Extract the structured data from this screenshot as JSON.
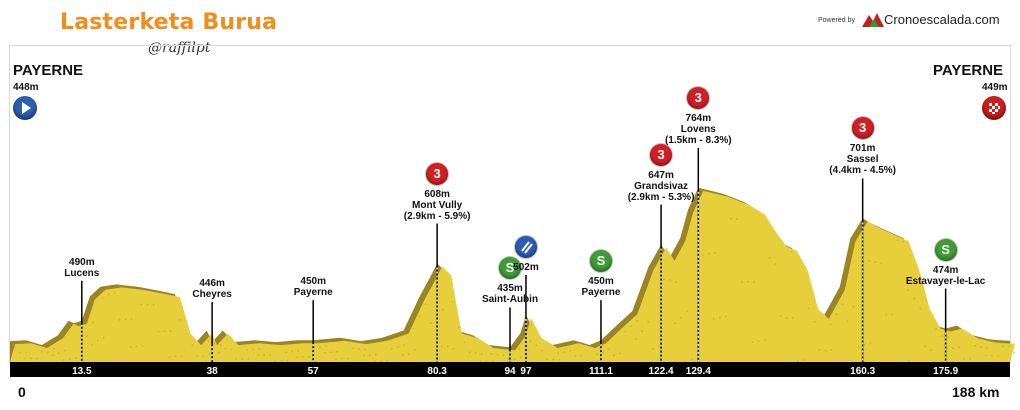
{
  "header": {
    "title": "Lasterketa Burua",
    "subtitle": "@raffilpt",
    "powered_by": "Powered by",
    "brand": "Cronoescalada.com"
  },
  "start": {
    "city": "PAYERNE",
    "altitude": "448m",
    "icon": "play-icon",
    "color": "#2f5fb3"
  },
  "finish": {
    "city": "PAYERNE",
    "altitude": "449m",
    "icon": "checkered-flag-icon",
    "color": "#cc1f1f"
  },
  "axis": {
    "start_label": "0",
    "end_label": "188 km"
  },
  "colors": {
    "terrain": "#e6cf3a",
    "terrain_dark": "#9a8424",
    "cat3": "#d21f26",
    "sprint": "#3f9d36",
    "special": "#2c5ab8"
  },
  "waypoints": [
    {
      "km": 13.5,
      "km_label": "13.5",
      "alt": 490,
      "lines": [
        "490m",
        "Lucens"
      ]
    },
    {
      "km": 38,
      "km_label": "38",
      "alt": 446,
      "lines": [
        "446m",
        "Cheyres"
      ]
    },
    {
      "km": 57,
      "km_label": "57",
      "alt": 450,
      "lines": [
        "450m",
        "Payerne"
      ]
    },
    {
      "km": 80.3,
      "km_label": "80.3",
      "alt": 608,
      "lines": [
        "608m",
        "Mont Vully",
        "(2.9km - 5.9%)"
      ],
      "badge": "3",
      "badge_type": "cat3"
    },
    {
      "km": 94,
      "km_label": "94",
      "alt": 435,
      "lines": [
        "435m",
        "Saint-Aubin"
      ],
      "badge": "S",
      "badge_type": "sprint"
    },
    {
      "km": 97,
      "km_label": "97",
      "alt": 502,
      "lines": [
        "502m"
      ],
      "badge": "",
      "badge_type": "special"
    },
    {
      "km": 111.1,
      "km_label": "111.1",
      "alt": 450,
      "lines": [
        "450m",
        "Payerne"
      ],
      "badge": "S",
      "badge_type": "sprint"
    },
    {
      "km": 122.4,
      "km_label": "122.4",
      "alt": 647,
      "lines": [
        "647m",
        "Grandsivaz",
        "(2.9km - 5.3%)"
      ],
      "badge": "3",
      "badge_type": "cat3"
    },
    {
      "km": 129.4,
      "km_label": "129.4",
      "alt": 764,
      "lines": [
        "764m",
        "Lovens",
        "(1.5km - 8.3%)"
      ],
      "badge": "3",
      "badge_type": "cat3"
    },
    {
      "km": 160.3,
      "km_label": "160.3",
      "alt": 701,
      "lines": [
        "701m",
        "Sassel",
        "(4.4km - 4.5%)"
      ],
      "badge": "3",
      "badge_type": "cat3"
    },
    {
      "km": 175.9,
      "km_label": "175.9",
      "alt": 474,
      "lines": [
        "474m",
        "Estavayer-le-Lac"
      ],
      "badge": "S",
      "badge_type": "sprint"
    }
  ],
  "chart_data": {
    "type": "area",
    "x_unit": "km",
    "y_unit": "m",
    "xlim": [
      0,
      188
    ],
    "points": [
      [
        0,
        448
      ],
      [
        3,
        450
      ],
      [
        6,
        440
      ],
      [
        9,
        460
      ],
      [
        11,
        490
      ],
      [
        12,
        485
      ],
      [
        13.5,
        490
      ],
      [
        15,
        540
      ],
      [
        17,
        560
      ],
      [
        20,
        565
      ],
      [
        24,
        560
      ],
      [
        28,
        552
      ],
      [
        31,
        545
      ],
      [
        33,
        470
      ],
      [
        35,
        446
      ],
      [
        37,
        470
      ],
      [
        38,
        446
      ],
      [
        40,
        470
      ],
      [
        42,
        446
      ],
      [
        46,
        450
      ],
      [
        50,
        446
      ],
      [
        54,
        450
      ],
      [
        57,
        450
      ],
      [
        62,
        455
      ],
      [
        66,
        448
      ],
      [
        70,
        455
      ],
      [
        74,
        470
      ],
      [
        77,
        540
      ],
      [
        79,
        580
      ],
      [
        80.3,
        608
      ],
      [
        82,
        590
      ],
      [
        84,
        470
      ],
      [
        87,
        460
      ],
      [
        90,
        440
      ],
      [
        94,
        435
      ],
      [
        96,
        465
      ],
      [
        97,
        502
      ],
      [
        99,
        460
      ],
      [
        102,
        440
      ],
      [
        106,
        450
      ],
      [
        109,
        440
      ],
      [
        111.1,
        450
      ],
      [
        114,
        480
      ],
      [
        117,
        510
      ],
      [
        120,
        600
      ],
      [
        122.4,
        647
      ],
      [
        124,
        620
      ],
      [
        126,
        660
      ],
      [
        127.5,
        720
      ],
      [
        129.4,
        764
      ],
      [
        131,
        760
      ],
      [
        134,
        752
      ],
      [
        138,
        735
      ],
      [
        141,
        715
      ],
      [
        143,
        680
      ],
      [
        145,
        650
      ],
      [
        147,
        640
      ],
      [
        149,
        600
      ],
      [
        151,
        520
      ],
      [
        153,
        500
      ],
      [
        156,
        560
      ],
      [
        158,
        660
      ],
      [
        160.3,
        701
      ],
      [
        162,
        690
      ],
      [
        165,
        675
      ],
      [
        168,
        660
      ],
      [
        170,
        600
      ],
      [
        172,
        520
      ],
      [
        174,
        480
      ],
      [
        175.9,
        474
      ],
      [
        178,
        480
      ],
      [
        181,
        460
      ],
      [
        184,
        452
      ],
      [
        186,
        450
      ],
      [
        188,
        449
      ]
    ]
  }
}
